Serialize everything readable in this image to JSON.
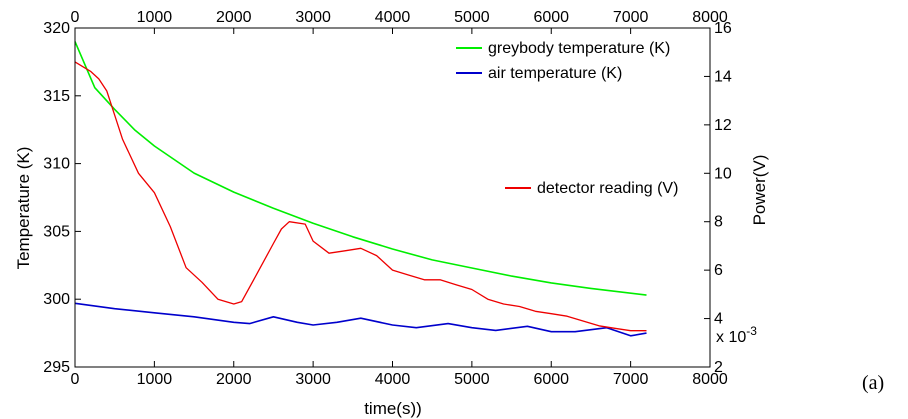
{
  "panel_label": "(a)",
  "chart_data": {
    "type": "line",
    "xlabel": "time(s))",
    "ylabel_left": "Temperature (K)",
    "ylabel_right": "Power(V)",
    "x_ticks": [
      "0",
      "1000",
      "2000",
      "3000",
      "4000",
      "5000",
      "6000",
      "7000",
      "8000"
    ],
    "x_top_ticks": [
      "0",
      "1000",
      "2000",
      "3000",
      "4000",
      "5000",
      "6000",
      "7000",
      "8000"
    ],
    "y_left_ticks": [
      "295",
      "300",
      "305",
      "310",
      "315",
      "320"
    ],
    "y_right_ticks": [
      "2",
      "4",
      "6",
      "8",
      "10",
      "12",
      "14",
      "16"
    ],
    "y_right_multiplier": "x 10",
    "y_right_exponent": "-3",
    "xlim": [
      0,
      8000
    ],
    "ylim_left": [
      295,
      320
    ],
    "ylim_right": [
      2,
      16
    ],
    "grid": false,
    "legend_upper": [
      {
        "label": "greybody temperature (K)",
        "color": "#00ee00"
      },
      {
        "label": "air temperature (K)",
        "color": "#0000cc"
      }
    ],
    "legend_lower": [
      {
        "label": "detector reading (V)",
        "color": "#ee0000"
      }
    ],
    "series": [
      {
        "name": "greybody temperature (K)",
        "axis": "left",
        "color": "#00ee00",
        "x": [
          0,
          250,
          500,
          750,
          1000,
          1500,
          2000,
          2500,
          3000,
          3500,
          4000,
          4500,
          5000,
          5500,
          6000,
          6500,
          7200
        ],
        "y": [
          319.0,
          315.6,
          314.0,
          312.5,
          311.3,
          309.3,
          307.9,
          306.7,
          305.6,
          304.6,
          303.7,
          302.9,
          302.3,
          301.7,
          301.2,
          300.8,
          300.3
        ]
      },
      {
        "name": "air temperature (K)",
        "axis": "left",
        "color": "#0000cc",
        "x": [
          0,
          500,
          1000,
          1500,
          2000,
          2200,
          2500,
          2800,
          3000,
          3300,
          3600,
          4000,
          4300,
          4700,
          5000,
          5300,
          5700,
          6000,
          6300,
          6700,
          7000,
          7200
        ],
        "y": [
          299.7,
          299.3,
          299.0,
          298.7,
          298.3,
          298.2,
          298.7,
          298.3,
          298.1,
          298.3,
          298.6,
          298.1,
          297.9,
          298.2,
          297.9,
          297.7,
          298.0,
          297.6,
          297.6,
          297.9,
          297.3,
          297.5
        ]
      },
      {
        "name": "detector reading (V)",
        "axis": "right",
        "color": "#ee0000",
        "x": [
          0,
          200,
          300,
          400,
          500,
          600,
          800,
          1000,
          1200,
          1400,
          1600,
          1800,
          2000,
          2100,
          2300,
          2500,
          2600,
          2700,
          2900,
          3000,
          3200,
          3400,
          3600,
          3800,
          4000,
          4200,
          4400,
          4600,
          4800,
          5000,
          5200,
          5400,
          5600,
          5800,
          6000,
          6200,
          6400,
          6600,
          6800,
          7000,
          7200
        ],
        "y": [
          14.6,
          14.2,
          13.9,
          13.4,
          12.4,
          11.4,
          10.0,
          9.2,
          7.8,
          6.1,
          5.5,
          4.8,
          4.6,
          4.7,
          5.9,
          7.1,
          7.7,
          8.0,
          7.9,
          7.2,
          6.7,
          6.8,
          6.9,
          6.6,
          6.0,
          5.8,
          5.6,
          5.6,
          5.4,
          5.2,
          4.8,
          4.6,
          4.5,
          4.3,
          4.2,
          4.1,
          3.9,
          3.7,
          3.6,
          3.5,
          3.5
        ]
      }
    ]
  }
}
